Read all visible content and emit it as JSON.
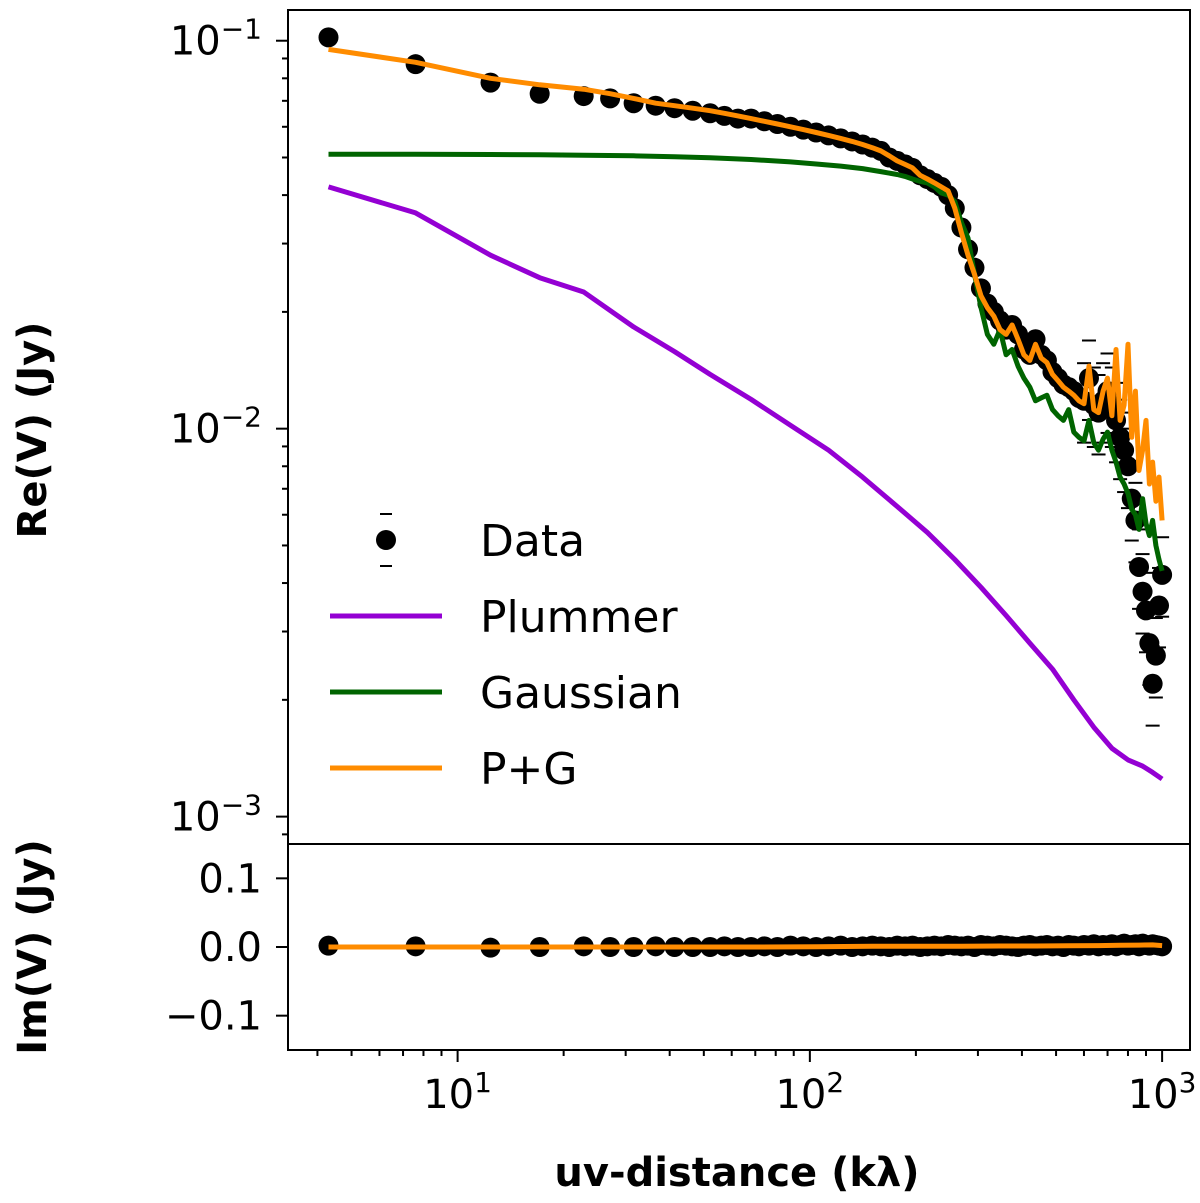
{
  "chart_data": [
    {
      "type": "scatter",
      "panel": "top",
      "ylabel": "Re(V) (Jy)",
      "xscale": "log",
      "yscale": "log",
      "xlim": [
        3.3,
        1200
      ],
      "ylim": [
        0.00085,
        0.12
      ],
      "yticks": [
        {
          "value": 0.1,
          "base": "10",
          "exp": "−1"
        },
        {
          "value": 0.01,
          "base": "10",
          "exp": "−2"
        },
        {
          "value": 0.001,
          "base": "10",
          "exp": "−3"
        }
      ],
      "data_points": {
        "x": [
          4.3,
          7.6,
          12.4,
          17.1,
          22.8,
          27.1,
          31.6,
          36.5,
          41.3,
          46.5,
          52.1,
          57.2,
          62.5,
          68.1,
          74.3,
          80.9,
          88.1,
          95.8,
          104.2,
          113.0,
          122.3,
          131.8,
          141.2,
          150.4,
          159.0,
          168.0,
          177.0,
          186.3,
          195.6,
          205.6,
          215.6,
          225.8,
          236.2,
          246.9,
          257.9,
          269.3,
          281.2,
          293.3,
          306.0,
          319.2,
          332.9,
          346.5,
          360.6,
          375.0,
          389.9,
          405.3,
          421.0,
          437.2,
          453.8,
          470.9,
          488.4,
          506.3,
          524.5,
          542.9,
          561.6,
          580.8,
          600.3,
          620.0,
          640.0,
          660.0,
          680.0,
          700.0,
          720.0,
          740.0,
          760.0,
          780.0,
          800.0,
          820.0,
          840.0,
          860.0,
          880.0,
          900.0,
          920.0,
          940.0,
          960.0,
          980.0,
          1000.0
        ],
        "y": [
          0.102,
          0.087,
          0.078,
          0.073,
          0.072,
          0.071,
          0.069,
          0.068,
          0.067,
          0.066,
          0.065,
          0.064,
          0.063,
          0.063,
          0.062,
          0.061,
          0.06,
          0.059,
          0.058,
          0.057,
          0.056,
          0.055,
          0.054,
          0.053,
          0.052,
          0.05,
          0.049,
          0.048,
          0.047,
          0.045,
          0.044,
          0.043,
          0.042,
          0.04,
          0.037,
          0.033,
          0.029,
          0.026,
          0.023,
          0.021,
          0.02,
          0.019,
          0.018,
          0.0185,
          0.0175,
          0.016,
          0.0155,
          0.017,
          0.0155,
          0.015,
          0.014,
          0.0135,
          0.013,
          0.0128,
          0.0125,
          0.012,
          0.0118,
          0.0135,
          0.0115,
          0.011,
          0.0118,
          0.0125,
          0.0115,
          0.0105,
          0.0095,
          0.0088,
          0.008,
          0.0066,
          0.0058,
          0.0044,
          0.0038,
          0.0034,
          0.0028,
          0.0022,
          0.0026,
          0.0035,
          0.0042
        ]
      },
      "series": [
        {
          "name": "Data",
          "color": "#000000",
          "kind": "points"
        },
        {
          "name": "Plummer",
          "color": "#9400d3",
          "kind": "line",
          "x": [
            4.3,
            7.6,
            12.4,
            17.1,
            22.8,
            31.6,
            41.3,
            52.1,
            68.1,
            88.1,
            113.0,
            141.2,
            177.0,
            215.6,
            257.9,
            306.0,
            360.6,
            421.0,
            488.4,
            561.6,
            640.0,
            720.0,
            800.0,
            880.0,
            940.0,
            1000.0
          ],
          "y": [
            0.042,
            0.036,
            0.028,
            0.0245,
            0.0225,
            0.0183,
            0.0158,
            0.0138,
            0.0119,
            0.0102,
            0.0088,
            0.0075,
            0.0063,
            0.0054,
            0.0046,
            0.0039,
            0.0033,
            0.0028,
            0.0024,
            0.002,
            0.0017,
            0.0015,
            0.0014,
            0.00135,
            0.0013,
            0.00125
          ]
        },
        {
          "name": "Gaussian",
          "color": "#006400",
          "kind": "line",
          "x": [
            4.3,
            7.6,
            12.4,
            17.1,
            22.8,
            31.6,
            41.3,
            52.1,
            68.1,
            88.1,
            104.2,
            122.3,
            141.2,
            159.0,
            177.0,
            186.3,
            195.6,
            205.6,
            215.6,
            225.8,
            236.2,
            246.9,
            257.9,
            269.3,
            281.2,
            293.3,
            306.0,
            319.2,
            332.9,
            346.5,
            360.6,
            375.0,
            389.9,
            405.3,
            421.0,
            437.2,
            453.8,
            470.9,
            488.4,
            506.3,
            524.5,
            542.9,
            561.6,
            580.8,
            600.3,
            620.0,
            640.0,
            660.0,
            680.0,
            700.0,
            720.0,
            740.0,
            760.0,
            780.0,
            800.0,
            820.0,
            840.0,
            860.0,
            880.0,
            900.0,
            920.0,
            940.0,
            960.0,
            980.0,
            1000.0
          ],
          "y": [
            0.051,
            0.051,
            0.0509,
            0.0508,
            0.0507,
            0.0505,
            0.0502,
            0.0499,
            0.0494,
            0.0487,
            0.0481,
            0.0475,
            0.0468,
            0.046,
            0.0452,
            0.0447,
            0.044,
            0.0434,
            0.043,
            0.042,
            0.0405,
            0.04,
            0.0385,
            0.034,
            0.031,
            0.025,
            0.0205,
            0.0175,
            0.0165,
            0.018,
            0.0155,
            0.016,
            0.0145,
            0.0135,
            0.0128,
            0.0118,
            0.012,
            0.0122,
            0.0112,
            0.0108,
            0.0105,
            0.0112,
            0.0098,
            0.0095,
            0.0093,
            0.0105,
            0.0092,
            0.0088,
            0.0094,
            0.0098,
            0.0088,
            0.0082,
            0.0075,
            0.0072,
            0.0068,
            0.0062,
            0.006,
            0.0055,
            0.0066,
            0.0057,
            0.0053,
            0.0058,
            0.005,
            0.0046,
            0.0043
          ]
        },
        {
          "name": "P+G",
          "color": "#ff8c00",
          "kind": "line",
          "x": [
            4.3,
            7.6,
            12.4,
            17.1,
            22.8,
            27.1,
            31.6,
            36.5,
            41.3,
            46.5,
            52.1,
            57.2,
            62.5,
            68.1,
            74.3,
            80.9,
            88.1,
            95.8,
            104.2,
            113.0,
            122.3,
            131.8,
            141.2,
            150.4,
            159.0,
            168.0,
            177.0,
            186.3,
            195.6,
            205.6,
            215.6,
            225.8,
            236.2,
            246.9,
            257.9,
            269.3,
            281.2,
            293.3,
            306.0,
            319.2,
            332.9,
            346.5,
            360.6,
            375.0,
            389.9,
            405.3,
            421.0,
            437.2,
            453.8,
            470.9,
            488.4,
            506.3,
            524.5,
            542.9,
            561.6,
            580.8,
            600.3,
            620.0,
            640.0,
            660.0,
            680.0,
            700.0,
            720.0,
            740.0,
            760.0,
            780.0,
            800.0,
            820.0,
            840.0,
            860.0,
            880.0,
            900.0,
            920.0,
            940.0,
            960.0,
            980.0,
            1000.0
          ],
          "y": [
            0.095,
            0.088,
            0.08,
            0.077,
            0.075,
            0.073,
            0.071,
            0.069,
            0.068,
            0.067,
            0.066,
            0.065,
            0.064,
            0.063,
            0.062,
            0.061,
            0.06,
            0.059,
            0.058,
            0.057,
            0.056,
            0.055,
            0.054,
            0.053,
            0.052,
            0.0505,
            0.049,
            0.048,
            0.047,
            0.045,
            0.044,
            0.043,
            0.042,
            0.041,
            0.037,
            0.032,
            0.028,
            0.025,
            0.022,
            0.0205,
            0.0195,
            0.018,
            0.0175,
            0.0185,
            0.017,
            0.0155,
            0.015,
            0.0165,
            0.0152,
            0.0148,
            0.0138,
            0.0133,
            0.0128,
            0.0125,
            0.0122,
            0.0118,
            0.0116,
            0.0145,
            0.0112,
            0.011,
            0.0125,
            0.0135,
            0.0108,
            0.016,
            0.0105,
            0.0115,
            0.0165,
            0.0095,
            0.0125,
            0.0078,
            0.0088,
            0.0105,
            0.0072,
            0.0082,
            0.0065,
            0.0075,
            0.0058
          ]
        }
      ],
      "legend": {
        "placement": "lower-left",
        "entries": [
          "Data",
          "Plummer",
          "Gaussian",
          "P+G"
        ]
      }
    },
    {
      "type": "scatter",
      "panel": "bottom",
      "ylabel": "Im(V) (Jy)",
      "xlabel": "uv-distance (kλ)",
      "xscale": "log",
      "xlim": [
        3.3,
        1200
      ],
      "ylim": [
        -0.15,
        0.15
      ],
      "yticks": [
        {
          "value": 0.1,
          "label": "0.1"
        },
        {
          "value": 0.0,
          "label": "0.0"
        },
        {
          "value": -0.1,
          "label": "−0.1"
        }
      ],
      "xticks": [
        {
          "value": 10,
          "base": "10",
          "exp": "1"
        },
        {
          "value": 100,
          "base": "10",
          "exp": "2"
        },
        {
          "value": 1000,
          "base": "10",
          "exp": "3"
        }
      ],
      "data_points": {
        "x": [
          4.3,
          7.6,
          12.4,
          17.1,
          22.8,
          27.1,
          31.6,
          36.5,
          41.3,
          46.5,
          52.1,
          57.2,
          62.5,
          68.1,
          74.3,
          80.9,
          88.1,
          95.8,
          104.2,
          113.0,
          122.3,
          131.8,
          141.2,
          150.4,
          159.0,
          168.0,
          177.0,
          186.3,
          195.6,
          205.6,
          215.6,
          225.8,
          236.2,
          246.9,
          257.9,
          269.3,
          281.2,
          293.3,
          306.0,
          319.2,
          332.9,
          346.5,
          360.6,
          375.0,
          389.9,
          405.3,
          421.0,
          437.2,
          453.8,
          470.9,
          488.4,
          506.3,
          524.5,
          542.9,
          561.6,
          580.8,
          600.3,
          620.0,
          640.0,
          660.0,
          680.0,
          700.0,
          720.0,
          740.0,
          760.0,
          780.0,
          800.0,
          820.0,
          840.0,
          860.0,
          880.0,
          900.0,
          920.0,
          940.0,
          960.0,
          980.0,
          1000.0
        ],
        "y": [
          0.002,
          0.001,
          -0.001,
          0.0,
          0.001,
          0.0,
          0.0,
          0.001,
          0.0,
          0.0,
          0.0,
          0.001,
          0.0,
          0.0,
          0.001,
          0.0,
          0.002,
          0.001,
          0.0,
          0.001,
          0.002,
          0.0,
          0.001,
          0.002,
          0.001,
          0.0,
          0.002,
          0.001,
          0.002,
          0.0,
          0.001,
          0.002,
          0.001,
          0.003,
          0.002,
          0.001,
          0.002,
          0.0,
          0.003,
          0.002,
          0.001,
          0.003,
          0.002,
          0.001,
          0.0,
          0.002,
          0.003,
          0.001,
          0.002,
          0.003,
          0.001,
          0.002,
          0.0,
          0.003,
          0.002,
          0.001,
          0.003,
          0.002,
          0.004,
          0.001,
          0.003,
          0.002,
          0.004,
          0.001,
          0.003,
          0.005,
          0.002,
          0.003,
          0.004,
          0.001,
          0.005,
          0.003,
          0.002,
          0.004,
          0.003,
          0.002,
          0.001
        ]
      },
      "series": [
        {
          "name": "P+G",
          "color": "#ff8c00",
          "kind": "line",
          "x": [
            4.3,
            12.4,
            22.8,
            41.3,
            68.1,
            104.2,
            150.4,
            205.6,
            269.3,
            346.5,
            437.2,
            542.9,
            660.0,
            760.0,
            860.0,
            940.0,
            1000.0
          ],
          "y": [
            0.0,
            0.0,
            0.0,
            0.0,
            0.0,
            0.0005,
            0.001,
            0.001,
            0.0012,
            0.0015,
            0.0015,
            0.0018,
            0.002,
            0.0025,
            0.0028,
            0.003,
            0.002
          ]
        }
      ]
    }
  ]
}
